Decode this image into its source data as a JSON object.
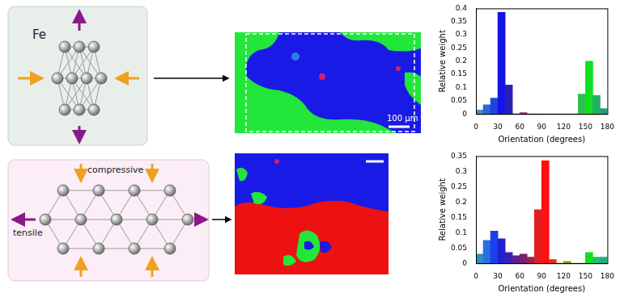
{
  "diagrams": [
    {
      "labels": [
        "Fe"
      ]
    },
    {
      "labels": [
        "compressive",
        "tensile"
      ]
    }
  ],
  "scale_bar": "100 µm",
  "chart_data": [
    {
      "type": "bar",
      "bins": [
        0,
        10,
        20,
        30,
        40,
        50,
        60,
        70,
        80,
        90,
        100,
        110,
        120,
        130,
        140,
        150,
        160,
        170,
        180
      ],
      "values": [
        0.015,
        0.035,
        0.06,
        0.385,
        0.11,
        0,
        0.005,
        0,
        0,
        0,
        0,
        0,
        0,
        0,
        0.075,
        0.2,
        0.07,
        0.02
      ],
      "colors": [
        "#3a8fd0",
        "#2a66d8",
        "#1f44e0",
        "#1414e6",
        "#2a1fb8",
        "#3a20a0",
        "#b0206a",
        "#a02050",
        "#e02020",
        "#ff1010",
        "#e03010",
        "#c05010",
        "#80a020",
        "#60b020",
        "#30c050",
        "#10e020",
        "#20b060",
        "#20a078"
      ],
      "xlim": [
        0,
        180
      ],
      "xticks": [
        0,
        30,
        60,
        90,
        120,
        150,
        180
      ],
      "ylim": [
        0,
        0.4
      ],
      "yticks": [
        0,
        0.05,
        0.1,
        0.15,
        0.2,
        0.25,
        0.3,
        0.35,
        0.4
      ],
      "x_label": "Orientation (degrees)",
      "y_label": "Relative weight",
      "grid": false
    },
    {
      "type": "bar",
      "bins": [
        0,
        10,
        20,
        30,
        40,
        50,
        60,
        70,
        80,
        90,
        100,
        110,
        120,
        130,
        140,
        150,
        160,
        170,
        180
      ],
      "values": [
        0.03,
        0.075,
        0.105,
        0.08,
        0.035,
        0.025,
        0.03,
        0.02,
        0.175,
        0.335,
        0.012,
        0,
        0.006,
        0,
        0,
        0.035,
        0.02,
        0.02
      ],
      "colors": [
        "#2a8fc8",
        "#2a6fe0",
        "#1a40f0",
        "#2020d0",
        "#3a20b0",
        "#5a2090",
        "#7a2070",
        "#a02050",
        "#e02020",
        "#ff1010",
        "#e03010",
        "#c05010",
        "#80a020",
        "#60b020",
        "#40c030",
        "#10e020",
        "#20c060",
        "#20b080"
      ],
      "xlim": [
        0,
        180
      ],
      "xticks": [
        0,
        30,
        60,
        90,
        120,
        150,
        180
      ],
      "ylim": [
        0,
        0.35
      ],
      "yticks": [
        0,
        0.05,
        0.1,
        0.15,
        0.2,
        0.25,
        0.3,
        0.35
      ],
      "x_label": "Orientation (degrees)",
      "y_label": "Relative weight",
      "grid": false
    }
  ]
}
